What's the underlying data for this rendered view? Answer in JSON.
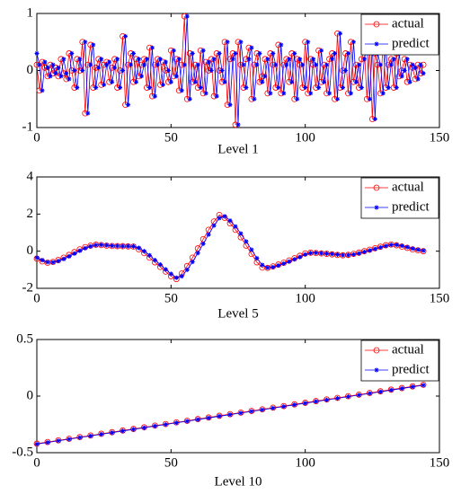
{
  "chart_data": [
    {
      "type": "line",
      "xlabel": "Level 1",
      "xlim": [
        0,
        150
      ],
      "ylim": [
        -1,
        1
      ],
      "xticks": [
        0,
        50,
        100,
        150
      ],
      "yticks": [
        -1,
        0,
        1
      ],
      "legend": "upper right",
      "x": [
        0,
        1,
        2,
        3,
        4,
        5,
        6,
        7,
        8,
        9,
        10,
        11,
        12,
        13,
        14,
        15,
        16,
        17,
        18,
        19,
        20,
        21,
        22,
        23,
        24,
        25,
        26,
        27,
        28,
        29,
        30,
        31,
        32,
        33,
        34,
        35,
        36,
        37,
        38,
        39,
        40,
        41,
        42,
        43,
        44,
        45,
        46,
        47,
        48,
        49,
        50,
        51,
        52,
        53,
        54,
        55,
        56,
        57,
        58,
        59,
        60,
        61,
        62,
        63,
        64,
        65,
        66,
        67,
        68,
        69,
        70,
        71,
        72,
        73,
        74,
        75,
        76,
        77,
        78,
        79,
        80,
        81,
        82,
        83,
        84,
        85,
        86,
        87,
        88,
        89,
        90,
        91,
        92,
        93,
        94,
        95,
        96,
        97,
        98,
        99,
        100,
        101,
        102,
        103,
        104,
        105,
        106,
        107,
        108,
        109,
        110,
        111,
        112,
        113,
        114,
        115,
        116,
        117,
        118,
        119,
        120,
        121,
        122,
        123,
        124,
        125,
        126,
        127,
        128,
        129,
        130,
        131,
        132,
        133,
        134,
        135,
        136,
        137,
        138,
        139,
        140,
        141,
        142,
        143,
        144
      ],
      "series": [
        {
          "name": "actual",
          "color": "#ff0000",
          "marker": "circle",
          "values": [
            0.1,
            -0.35,
            0.15,
            0.05,
            -0.1,
            0.1,
            -0.05,
            0.05,
            -0.1,
            0.2,
            -0.05,
            -0.15,
            0.3,
            0.0,
            -0.3,
            0.2,
            0.0,
            0.5,
            -0.75,
            0.1,
            0.45,
            -0.3,
            0.05,
            0.2,
            -0.25,
            0.1,
            0.15,
            -0.2,
            0.05,
            0.2,
            -0.3,
            0.0,
            0.6,
            -0.6,
            0.1,
            0.3,
            -0.2,
            0.2,
            -0.1,
            0.1,
            0.2,
            -0.3,
            0.4,
            -0.45,
            0.1,
            0.2,
            -0.25,
            0.15,
            0.0,
            -0.2,
            0.35,
            -0.1,
            0.2,
            -0.35,
            0.1,
            0.95,
            -0.5,
            0.3,
            -0.2,
            0.1,
            -0.3,
            0.35,
            -0.4,
            0.15,
            0.0,
            0.2,
            -0.45,
            0.3,
            0.0,
            -0.2,
            0.5,
            -0.6,
            0.2,
            0.3,
            -0.95,
            0.5,
            0.1,
            -0.3,
            0.2,
            0.4,
            -0.5,
            0.1,
            0.3,
            -0.2,
            -0.1,
            0.2,
            -0.4,
            0.3,
            0.1,
            -0.3,
            0.45,
            -0.4,
            0.1,
            0.2,
            -0.2,
            0.3,
            -0.5,
            0.2,
            0.1,
            -0.3,
            0.5,
            -0.4,
            0.2,
            0.1,
            -0.3,
            0.35,
            -0.2,
            0.1,
            -0.4,
            0.2,
            0.3,
            -0.5,
            0.65,
            -0.3,
            0.0,
            0.3,
            -0.4,
            0.5,
            -0.2,
            0.1,
            -0.3,
            0.2,
            0.4,
            -0.5,
            0.45,
            -0.85,
            0.3,
            0.1,
            -0.4,
            0.5,
            -0.3,
            0.1,
            0.2,
            -0.3,
            0.3,
            -0.1,
            0.0,
            0.2,
            -0.2,
            0.1,
            0.05,
            -0.15,
            0.1,
            -0.05,
            0.1
          ]
        },
        {
          "name": "predict",
          "color": "#0000ff",
          "marker": "star",
          "values": [
            0.3,
            0.1,
            -0.35,
            0.15,
            0.05,
            -0.1,
            0.1,
            -0.05,
            0.05,
            -0.1,
            0.2,
            -0.05,
            -0.15,
            0.3,
            0.0,
            -0.3,
            0.2,
            0.0,
            0.5,
            -0.75,
            0.1,
            0.45,
            -0.3,
            0.05,
            0.2,
            -0.25,
            0.1,
            0.15,
            -0.2,
            0.05,
            0.2,
            -0.3,
            0.0,
            0.6,
            -0.6,
            0.1,
            0.3,
            -0.2,
            0.2,
            -0.1,
            0.1,
            0.2,
            -0.3,
            0.4,
            -0.45,
            0.1,
            0.2,
            -0.25,
            0.15,
            0.0,
            -0.2,
            0.35,
            -0.1,
            0.2,
            -0.35,
            0.1,
            0.95,
            -0.5,
            0.3,
            -0.2,
            0.1,
            -0.3,
            0.35,
            -0.4,
            0.15,
            0.0,
            0.2,
            -0.45,
            0.3,
            0.0,
            -0.2,
            0.5,
            -0.6,
            0.2,
            0.3,
            -0.95,
            0.5,
            0.1,
            -0.3,
            0.2,
            0.4,
            -0.5,
            0.1,
            0.3,
            -0.2,
            -0.1,
            0.2,
            -0.4,
            0.3,
            0.1,
            -0.3,
            0.45,
            -0.4,
            0.1,
            0.2,
            -0.2,
            0.3,
            -0.5,
            0.2,
            0.1,
            -0.3,
            0.5,
            -0.4,
            0.2,
            0.1,
            -0.3,
            0.35,
            -0.2,
            0.1,
            -0.4,
            0.2,
            0.3,
            -0.5,
            0.65,
            -0.3,
            0.0,
            0.3,
            -0.4,
            0.5,
            -0.2,
            0.1,
            -0.3,
            0.2,
            0.4,
            -0.5,
            0.45,
            -0.85,
            0.3,
            0.1,
            -0.4,
            0.5,
            -0.3,
            0.1,
            0.2,
            -0.3,
            0.3,
            -0.1,
            0.0,
            0.2,
            -0.2,
            0.1,
            0.05,
            -0.15,
            0.1,
            -0.05
          ]
        }
      ]
    },
    {
      "type": "line",
      "xlabel": "Level 5",
      "xlim": [
        0,
        150
      ],
      "ylim": [
        -2,
        4
      ],
      "xticks": [
        0,
        50,
        100,
        150
      ],
      "yticks": [
        -2,
        0,
        2,
        4
      ],
      "legend": "upper right",
      "x": [
        0,
        2,
        4,
        6,
        8,
        10,
        12,
        14,
        16,
        18,
        20,
        22,
        24,
        26,
        28,
        30,
        32,
        34,
        36,
        38,
        40,
        42,
        44,
        46,
        48,
        50,
        52,
        54,
        56,
        58,
        60,
        62,
        64,
        66,
        68,
        70,
        72,
        74,
        76,
        78,
        80,
        82,
        84,
        86,
        88,
        90,
        92,
        94,
        96,
        98,
        100,
        102,
        104,
        106,
        108,
        110,
        112,
        114,
        116,
        118,
        120,
        122,
        124,
        126,
        128,
        130,
        132,
        134,
        136,
        138,
        140,
        142,
        144
      ],
      "series": [
        {
          "name": "actual",
          "color": "#ff0000",
          "marker": "circle",
          "values": [
            -0.4,
            -0.55,
            -0.62,
            -0.58,
            -0.48,
            -0.35,
            -0.2,
            -0.05,
            0.1,
            0.22,
            0.3,
            0.35,
            0.33,
            0.3,
            0.28,
            0.27,
            0.27,
            0.26,
            0.25,
            0.1,
            -0.1,
            -0.35,
            -0.6,
            -0.85,
            -1.1,
            -1.35,
            -1.5,
            -1.2,
            -0.8,
            -0.35,
            0.15,
            0.65,
            1.15,
            1.6,
            1.95,
            1.8,
            1.5,
            1.15,
            0.75,
            0.3,
            -0.15,
            -0.6,
            -0.88,
            -0.9,
            -0.82,
            -0.72,
            -0.62,
            -0.5,
            -0.38,
            -0.25,
            -0.12,
            -0.08,
            -0.1,
            -0.12,
            -0.14,
            -0.17,
            -0.2,
            -0.22,
            -0.2,
            -0.15,
            -0.08,
            0.0,
            0.08,
            0.16,
            0.24,
            0.32,
            0.36,
            0.32,
            0.25,
            0.18,
            0.1,
            0.05,
            0.0
          ]
        },
        {
          "name": "predict",
          "color": "#0000ff",
          "marker": "star",
          "values": [
            -0.35,
            -0.48,
            -0.59,
            -0.6,
            -0.53,
            -0.42,
            -0.28,
            -0.13,
            0.02,
            0.16,
            0.26,
            0.33,
            0.34,
            0.32,
            0.29,
            0.28,
            0.27,
            0.27,
            0.26,
            0.18,
            0.0,
            -0.22,
            -0.48,
            -0.72,
            -0.98,
            -1.22,
            -1.43,
            -1.35,
            -1.0,
            -0.58,
            -0.1,
            0.4,
            0.9,
            1.38,
            1.78,
            1.88,
            1.65,
            1.33,
            0.95,
            0.52,
            0.08,
            -0.38,
            -0.74,
            -0.89,
            -0.86,
            -0.77,
            -0.67,
            -0.56,
            -0.44,
            -0.32,
            -0.18,
            -0.1,
            -0.09,
            -0.11,
            -0.13,
            -0.15,
            -0.18,
            -0.21,
            -0.21,
            -0.18,
            -0.12,
            -0.04,
            0.04,
            0.12,
            0.2,
            0.28,
            0.34,
            0.34,
            0.29,
            0.22,
            0.14,
            0.08,
            0.03
          ]
        }
      ]
    },
    {
      "type": "line",
      "xlabel": "Level 10",
      "xlim": [
        0,
        150
      ],
      "ylim": [
        -0.5,
        0.5
      ],
      "xticks": [
        0,
        50,
        100,
        150
      ],
      "yticks": [
        -0.5,
        0,
        0.5
      ],
      "legend": "upper right",
      "x": [
        0,
        4,
        8,
        12,
        16,
        20,
        24,
        28,
        32,
        36,
        40,
        44,
        48,
        52,
        56,
        60,
        64,
        68,
        72,
        76,
        80,
        84,
        88,
        92,
        96,
        100,
        104,
        108,
        112,
        116,
        120,
        124,
        128,
        132,
        136,
        140,
        144
      ],
      "series": [
        {
          "name": "actual",
          "color": "#ff0000",
          "marker": "circle",
          "values": [
            -0.42,
            -0.406,
            -0.391,
            -0.377,
            -0.362,
            -0.348,
            -0.333,
            -0.319,
            -0.304,
            -0.29,
            -0.276,
            -0.261,
            -0.247,
            -0.232,
            -0.218,
            -0.203,
            -0.189,
            -0.174,
            -0.16,
            -0.146,
            -0.131,
            -0.117,
            -0.102,
            -0.088,
            -0.073,
            -0.059,
            -0.044,
            -0.03,
            -0.016,
            -0.001,
            0.013,
            0.028,
            0.042,
            0.057,
            0.071,
            0.086,
            0.1
          ]
        },
        {
          "name": "predict",
          "color": "#0000ff",
          "marker": "star",
          "values": [
            -0.424,
            -0.41,
            -0.395,
            -0.381,
            -0.366,
            -0.352,
            -0.337,
            -0.323,
            -0.308,
            -0.294,
            -0.28,
            -0.265,
            -0.251,
            -0.236,
            -0.222,
            -0.207,
            -0.193,
            -0.178,
            -0.164,
            -0.15,
            -0.135,
            -0.121,
            -0.106,
            -0.092,
            -0.077,
            -0.063,
            -0.048,
            -0.034,
            -0.02,
            -0.005,
            0.009,
            0.024,
            0.038,
            0.053,
            0.067,
            0.082,
            0.096
          ]
        }
      ]
    }
  ]
}
